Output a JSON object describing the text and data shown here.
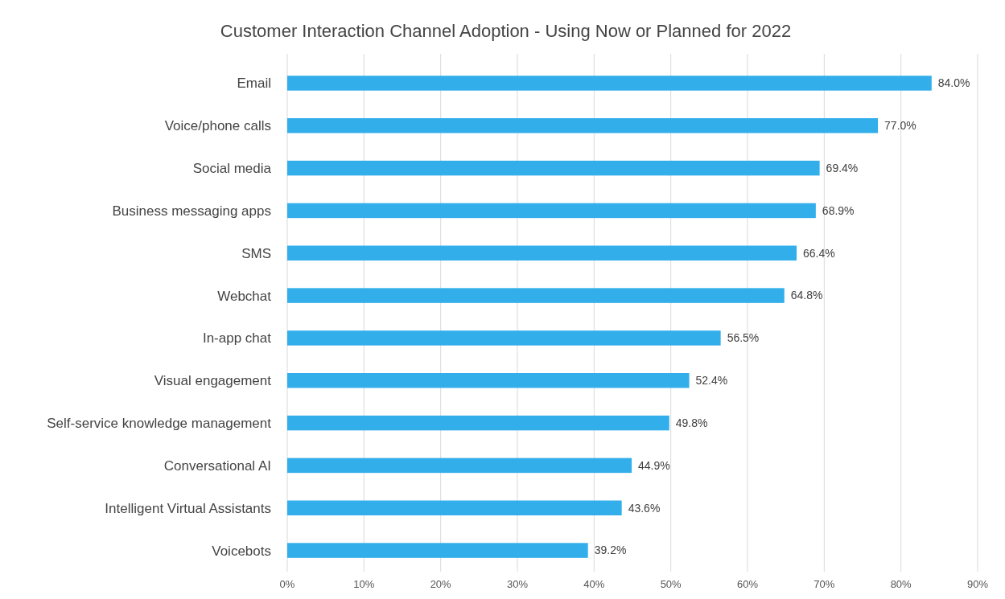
{
  "chart_data": {
    "type": "bar",
    "orientation": "horizontal",
    "title": "Customer Interaction Channel Adoption - Using Now or Planned for 2022",
    "categories": [
      "Email",
      "Voice/phone calls",
      "Social media",
      "Business messaging apps",
      "SMS",
      "Webchat",
      "In-app chat",
      "Visual engagement",
      "Self-service knowledge management",
      "Conversational AI",
      "Intelligent Virtual Assistants",
      "Voicebots"
    ],
    "values": [
      84.0,
      77.0,
      69.4,
      68.9,
      66.4,
      64.8,
      56.5,
      52.4,
      49.8,
      44.9,
      43.6,
      39.2
    ],
    "value_labels": [
      "84.0%",
      "77.0%",
      "69.4%",
      "68.9%",
      "66.4%",
      "64.8%",
      "56.5%",
      "52.4%",
      "49.8%",
      "44.9%",
      "43.6%",
      "39.2%"
    ],
    "color": "#32aeeb",
    "xlim": [
      0,
      90
    ],
    "xticks": [
      {
        "value": 0,
        "label": "0%"
      },
      {
        "value": 10,
        "label": "10%"
      },
      {
        "value": 20,
        "label": "20%"
      },
      {
        "value": 30,
        "label": "30%"
      },
      {
        "value": 40,
        "label": "40%"
      },
      {
        "value": 50,
        "label": "50%"
      },
      {
        "value": 60,
        "label": "60%"
      },
      {
        "value": 70,
        "label": "70%"
      },
      {
        "value": 80,
        "label": "80%"
      },
      {
        "value": 90,
        "label": "90%"
      }
    ],
    "grid": "x"
  }
}
